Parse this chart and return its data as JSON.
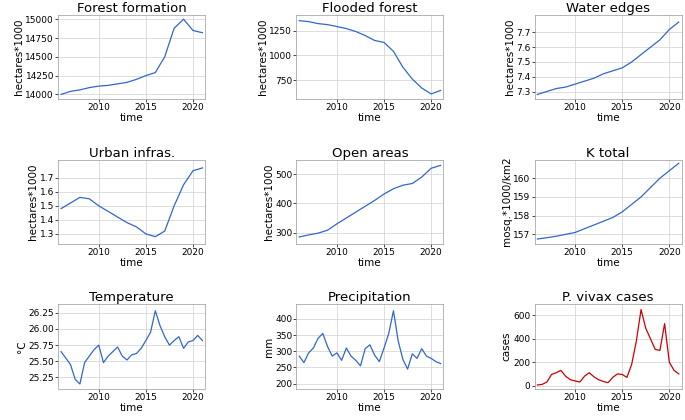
{
  "panels": [
    {
      "title": "Forest formation",
      "ylabel": "hectares*1000",
      "xlabel": "time",
      "color": "#3366cc",
      "x": [
        2006,
        2007,
        2008,
        2009,
        2010,
        2011,
        2012,
        2013,
        2014,
        2015,
        2016,
        2017,
        2018,
        2019,
        2020,
        2021
      ],
      "y": [
        14000,
        14040,
        14060,
        14090,
        14110,
        14120,
        14140,
        14160,
        14200,
        14250,
        14290,
        14500,
        14880,
        15000,
        14850,
        14820
      ],
      "yticks": [
        14000,
        14250,
        14500,
        14750,
        15000
      ],
      "ylim": [
        13940,
        15060
      ]
    },
    {
      "title": "Flooded forest",
      "ylabel": "hectares*1000",
      "xlabel": "time",
      "color": "#3366cc",
      "x": [
        2006,
        2007,
        2008,
        2009,
        2010,
        2011,
        2012,
        2013,
        2014,
        2015,
        2016,
        2017,
        2018,
        2019,
        2020,
        2021
      ],
      "y": [
        1350,
        1340,
        1320,
        1310,
        1290,
        1270,
        1240,
        1200,
        1150,
        1130,
        1040,
        880,
        760,
        670,
        610,
        645
      ],
      "yticks": [
        750,
        1000,
        1250
      ],
      "ylim": [
        560,
        1410
      ]
    },
    {
      "title": "Water edges",
      "ylabel": "hectares*1000",
      "xlabel": "time",
      "color": "#3366cc",
      "x": [
        2006,
        2007,
        2008,
        2009,
        2010,
        2011,
        2012,
        2013,
        2014,
        2015,
        2016,
        2017,
        2018,
        2019,
        2020,
        2021
      ],
      "y": [
        7.28,
        7.3,
        7.32,
        7.33,
        7.35,
        7.37,
        7.39,
        7.42,
        7.44,
        7.46,
        7.5,
        7.55,
        7.6,
        7.65,
        7.72,
        7.77
      ],
      "yticks": [
        7.3,
        7.4,
        7.5,
        7.6,
        7.7
      ],
      "ylim": [
        7.25,
        7.82
      ]
    },
    {
      "title": "Urban infras.",
      "ylabel": "hectares*1000",
      "xlabel": "time",
      "color": "#3366cc",
      "x": [
        2006,
        2007,
        2008,
        2009,
        2010,
        2011,
        2012,
        2013,
        2014,
        2015,
        2016,
        2017,
        2018,
        2019,
        2020,
        2021
      ],
      "y": [
        1.48,
        1.52,
        1.56,
        1.55,
        1.5,
        1.46,
        1.42,
        1.38,
        1.35,
        1.3,
        1.28,
        1.32,
        1.5,
        1.65,
        1.75,
        1.77
      ],
      "yticks": [
        1.3,
        1.4,
        1.5,
        1.6,
        1.7
      ],
      "ylim": [
        1.23,
        1.83
      ]
    },
    {
      "title": "Open areas",
      "ylabel": "hectares*1000",
      "xlabel": "time",
      "color": "#3366cc",
      "x": [
        2006,
        2007,
        2008,
        2009,
        2010,
        2011,
        2012,
        2013,
        2014,
        2015,
        2016,
        2017,
        2018,
        2019,
        2020,
        2021
      ],
      "y": [
        285,
        292,
        298,
        308,
        330,
        350,
        370,
        390,
        410,
        432,
        450,
        462,
        468,
        490,
        520,
        530
      ],
      "yticks": [
        300,
        400,
        500
      ],
      "ylim": [
        262,
        550
      ]
    },
    {
      "title": "K total",
      "ylabel": "mosq.*1000/km2",
      "xlabel": "time",
      "color": "#3366cc",
      "x": [
        2006,
        2007,
        2008,
        2009,
        2010,
        2011,
        2012,
        2013,
        2014,
        2015,
        2016,
        2017,
        2018,
        2019,
        2020,
        2021
      ],
      "y": [
        156.75,
        156.82,
        156.9,
        157.0,
        157.1,
        157.3,
        157.5,
        157.7,
        157.9,
        158.2,
        158.6,
        159.0,
        159.5,
        160.0,
        160.4,
        160.8
      ],
      "yticks": [
        157,
        158,
        159,
        160
      ],
      "ylim": [
        156.5,
        161.0
      ]
    },
    {
      "title": "Temperature",
      "ylabel": "°C",
      "xlabel": "time",
      "color": "#3366cc",
      "x": [
        2006.0,
        2006.5,
        2007.0,
        2007.5,
        2008.0,
        2008.5,
        2009.0,
        2009.5,
        2010.0,
        2010.5,
        2011.0,
        2011.5,
        2012.0,
        2012.5,
        2013.0,
        2013.5,
        2014.0,
        2014.5,
        2015.0,
        2015.5,
        2016.0,
        2016.5,
        2017.0,
        2017.5,
        2018.0,
        2018.5,
        2019.0,
        2019.5,
        2020.0,
        2020.5,
        2021.0
      ],
      "y": [
        25.65,
        25.55,
        25.45,
        25.22,
        25.15,
        25.48,
        25.58,
        25.68,
        25.75,
        25.48,
        25.58,
        25.65,
        25.72,
        25.58,
        25.52,
        25.6,
        25.62,
        25.7,
        25.82,
        25.95,
        26.28,
        26.05,
        25.88,
        25.75,
        25.82,
        25.88,
        25.7,
        25.8,
        25.82,
        25.9,
        25.82
      ],
      "yticks": [
        25.25,
        25.5,
        25.75,
        26.0,
        26.25
      ],
      "ylim": [
        25.08,
        26.38
      ]
    },
    {
      "title": "Precipitation",
      "ylabel": "mm",
      "xlabel": "time",
      "color": "#3366cc",
      "x": [
        2006.0,
        2006.5,
        2007.0,
        2007.5,
        2008.0,
        2008.5,
        2009.0,
        2009.5,
        2010.0,
        2010.5,
        2011.0,
        2011.5,
        2012.0,
        2012.5,
        2013.0,
        2013.5,
        2014.0,
        2014.5,
        2015.0,
        2015.5,
        2016.0,
        2016.5,
        2017.0,
        2017.5,
        2018.0,
        2018.5,
        2019.0,
        2019.5,
        2020.0,
        2020.5,
        2021.0
      ],
      "y": [
        285,
        265,
        295,
        310,
        340,
        355,
        315,
        285,
        295,
        272,
        310,
        285,
        272,
        255,
        308,
        320,
        288,
        268,
        310,
        355,
        425,
        332,
        275,
        245,
        292,
        278,
        308,
        285,
        278,
        268,
        262
      ],
      "yticks": [
        200,
        250,
        300,
        350,
        400
      ],
      "ylim": [
        185,
        445
      ]
    },
    {
      "title": "P. vivax cases",
      "ylabel": "cases",
      "xlabel": "time",
      "color": "#cc0000",
      "x": [
        2006.0,
        2006.5,
        2007.0,
        2007.5,
        2008.0,
        2008.5,
        2009.0,
        2009.5,
        2010.0,
        2010.5,
        2011.0,
        2011.5,
        2012.0,
        2012.5,
        2013.0,
        2013.5,
        2014.0,
        2014.5,
        2015.0,
        2015.5,
        2016.0,
        2016.5,
        2017.0,
        2017.5,
        2018.0,
        2018.5,
        2019.0,
        2019.5,
        2020.0,
        2020.5,
        2021.0
      ],
      "y": [
        5,
        10,
        30,
        95,
        110,
        130,
        80,
        50,
        40,
        30,
        80,
        110,
        75,
        50,
        35,
        25,
        70,
        100,
        95,
        70,
        180,
        380,
        650,
        490,
        400,
        310,
        300,
        530,
        200,
        130,
        100
      ],
      "yticks": [
        0,
        200,
        400,
        600
      ],
      "ylim": [
        -25,
        695
      ]
    }
  ],
  "grid_color": "#d0d0d0",
  "panel_bg": "#f0f0f0",
  "fig_bg": "#ffffff",
  "title_fontsize": 9.5,
  "label_fontsize": 7.5,
  "tick_fontsize": 6.5
}
